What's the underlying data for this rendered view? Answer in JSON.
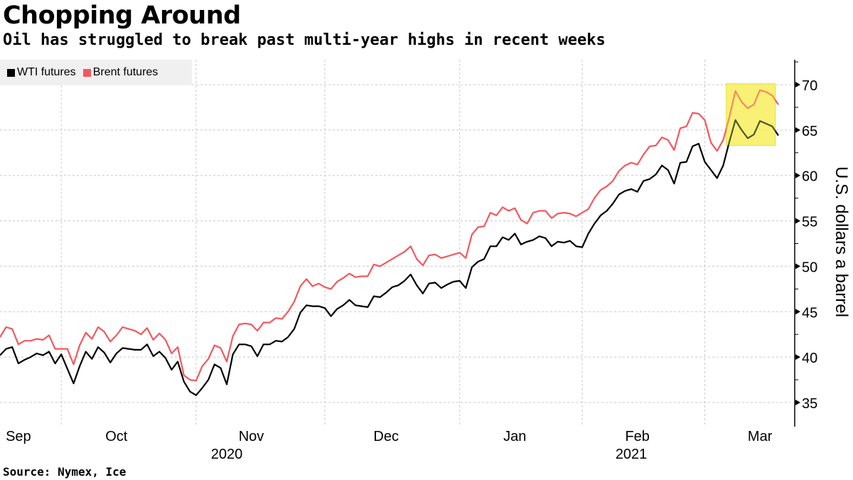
{
  "header": {
    "title": "Chopping Around",
    "subtitle": "Oil has struggled to break past multi-year highs in recent weeks"
  },
  "footer": {
    "source": "Source: Nymex, Ice"
  },
  "legend": {
    "items": [
      {
        "label": "WTI futures",
        "color": "#000000"
      },
      {
        "label": "Brent futures",
        "color": "#f2595e"
      }
    ]
  },
  "chart_data": {
    "type": "line",
    "title": "Chopping Around",
    "subtitle": "Oil has struggled to break past multi-year highs in recent weeks",
    "xlabel": "",
    "ylabel": "U.S. dollars a barrel",
    "ylim": [
      32.5,
      73
    ],
    "yticks": [
      35,
      40,
      45,
      50,
      55,
      60,
      65,
      70
    ],
    "grid": true,
    "legend_position": "top-left",
    "y_axis_side": "right",
    "x_range_trading_days": [
      0,
      128
    ],
    "month_ticks": [
      {
        "label": "Sep",
        "day": 3
      },
      {
        "label": "Oct",
        "day": 19
      },
      {
        "label": "Nov",
        "day": 41
      },
      {
        "label": "Dec",
        "day": 63
      },
      {
        "label": "Jan",
        "day": 84
      },
      {
        "label": "Feb",
        "day": 104
      },
      {
        "label": "Mar",
        "day": 124
      }
    ],
    "month_boundaries": [
      10,
      32,
      53,
      75,
      95,
      115
    ],
    "year_labels": [
      {
        "label": "2020",
        "day": 37
      },
      {
        "label": "2021",
        "day": 103
      }
    ],
    "highlight": {
      "x_from_day": 118.5,
      "x_to_day": 126.5,
      "y_from": 63.3,
      "y_to": 70.1,
      "color": "#f7ef5c"
    },
    "series": [
      {
        "name": "WTI futures",
        "color": "#000000",
        "values": [
          40.2,
          40.9,
          41.1,
          39.3,
          39.7,
          40.0,
          40.4,
          40.2,
          40.6,
          39.3,
          40.3,
          38.7,
          37.1,
          39.0,
          40.6,
          39.8,
          41.1,
          40.5,
          39.4,
          40.4,
          41.0,
          40.9,
          40.8,
          40.8,
          41.4,
          40.1,
          40.6,
          39.9,
          38.6,
          39.5,
          37.3,
          36.2,
          35.8,
          36.6,
          37.5,
          39.2,
          38.8,
          37.0,
          40.3,
          41.4,
          41.4,
          41.2,
          40.1,
          41.4,
          41.4,
          41.8,
          41.7,
          42.2,
          43.1,
          44.9,
          45.7,
          45.6,
          45.6,
          45.4,
          44.5,
          45.3,
          45.7,
          46.3,
          45.7,
          45.6,
          45.5,
          46.7,
          46.6,
          47.1,
          47.7,
          47.9,
          48.4,
          49.1,
          47.9,
          47.0,
          48.1,
          48.2,
          47.6,
          48.0,
          48.3,
          48.4,
          47.6,
          49.9,
          50.5,
          50.8,
          52.2,
          52.2,
          53.2,
          52.9,
          53.6,
          52.4,
          52.7,
          52.9,
          53.3,
          53.1,
          52.2,
          52.7,
          52.6,
          52.8,
          52.2,
          52.1,
          53.6,
          54.7,
          55.6,
          56.1,
          56.9,
          57.9,
          58.3,
          58.5,
          58.2,
          59.4,
          59.6,
          60.1,
          61.1,
          60.6,
          59.1,
          61.4,
          61.5,
          63.2,
          63.5,
          61.5,
          60.6,
          59.7,
          61.1,
          63.7,
          66.1,
          65.0,
          64.1,
          64.5,
          66.0,
          65.7,
          65.4,
          64.4
        ]
      },
      {
        "name": "Brent futures",
        "color": "#f2595e",
        "values": [
          42.2,
          43.3,
          43.1,
          41.4,
          41.8,
          41.8,
          42.0,
          41.9,
          42.4,
          40.9,
          40.9,
          40.9,
          39.2,
          41.3,
          42.7,
          42.0,
          43.3,
          42.8,
          41.7,
          42.4,
          43.3,
          43.1,
          42.9,
          42.5,
          43.2,
          41.9,
          42.6,
          41.9,
          40.4,
          41.1,
          38.0,
          37.5,
          37.4,
          39.0,
          39.8,
          41.3,
          41.0,
          39.5,
          42.3,
          43.6,
          43.7,
          43.6,
          42.9,
          43.8,
          43.8,
          44.3,
          44.2,
          45.0,
          46.1,
          47.8,
          48.6,
          47.8,
          48.1,
          47.7,
          47.5,
          48.3,
          48.7,
          49.2,
          48.8,
          48.9,
          48.9,
          50.2,
          50.0,
          50.4,
          50.8,
          51.2,
          51.6,
          52.2,
          50.8,
          50.1,
          51.2,
          51.3,
          50.9,
          51.1,
          51.3,
          51.5,
          50.9,
          53.5,
          54.3,
          54.4,
          55.9,
          55.6,
          56.5,
          56.1,
          56.4,
          55.1,
          54.7,
          55.9,
          56.1,
          56.1,
          55.3,
          55.8,
          55.9,
          55.8,
          55.5,
          55.9,
          56.3,
          57.5,
          58.4,
          58.8,
          59.4,
          60.5,
          61.1,
          61.4,
          61.2,
          62.3,
          63.2,
          63.3,
          64.2,
          63.9,
          62.8,
          65.2,
          65.4,
          66.9,
          66.8,
          66.1,
          63.6,
          62.7,
          63.9,
          66.4,
          69.3,
          68.1,
          67.4,
          67.8,
          69.4,
          69.2,
          68.8,
          67.8
        ]
      }
    ]
  }
}
